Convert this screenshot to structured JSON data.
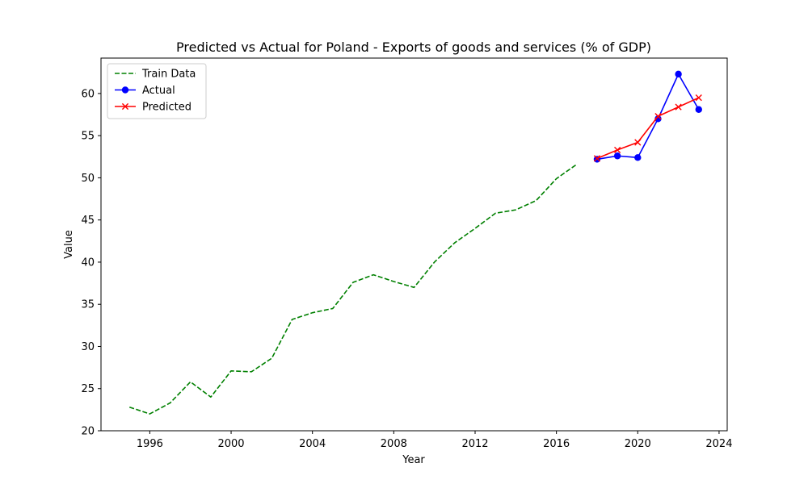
{
  "chart_data": {
    "type": "line",
    "title": "Predicted vs Actual for Poland - Exports of goods and services (% of GDP)",
    "xlabel": "Year",
    "ylabel": "Value",
    "xlim": [
      1993.6,
      2024.4
    ],
    "ylim": [
      20,
      64.2
    ],
    "xticks": [
      1996,
      2000,
      2004,
      2008,
      2012,
      2016,
      2020,
      2024
    ],
    "yticks": [
      20,
      25,
      30,
      35,
      40,
      45,
      50,
      55,
      60
    ],
    "grid": false,
    "legend_position": "top-left",
    "series": [
      {
        "name": "Train Data",
        "color": "#008000",
        "style": "dashed",
        "marker": "none",
        "x": [
          1995,
          1996,
          1997,
          1998,
          1999,
          2000,
          2001,
          2002,
          2003,
          2004,
          2005,
          2006,
          2007,
          2008,
          2009,
          2010,
          2011,
          2012,
          2013,
          2014,
          2015,
          2016,
          2017
        ],
        "y": [
          22.8,
          22.0,
          23.3,
          25.8,
          24.0,
          27.1,
          27.0,
          28.6,
          33.2,
          34.0,
          34.5,
          37.6,
          38.5,
          37.7,
          37.0,
          40.0,
          42.3,
          44.0,
          45.8,
          46.2,
          47.3,
          49.9,
          51.6
        ]
      },
      {
        "name": "Actual",
        "color": "#0000ff",
        "style": "solid",
        "marker": "circle",
        "x": [
          2018,
          2019,
          2020,
          2021,
          2022,
          2023
        ],
        "y": [
          52.2,
          52.6,
          52.4,
          57.0,
          62.3,
          58.1
        ]
      },
      {
        "name": "Predicted",
        "color": "#ff0000",
        "style": "solid",
        "marker": "x",
        "x": [
          2018,
          2019,
          2020,
          2021,
          2022,
          2023
        ],
        "y": [
          52.3,
          53.3,
          54.2,
          57.3,
          58.4,
          59.5
        ]
      }
    ]
  }
}
